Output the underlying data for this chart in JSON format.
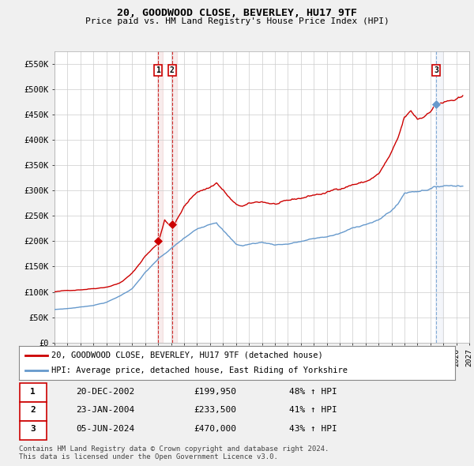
{
  "title": "20, GOODWOOD CLOSE, BEVERLEY, HU17 9TF",
  "subtitle": "Price paid vs. HM Land Registry's House Price Index (HPI)",
  "ylim": [
    0,
    575000
  ],
  "yticks": [
    0,
    50000,
    100000,
    150000,
    200000,
    250000,
    300000,
    350000,
    400000,
    450000,
    500000,
    550000
  ],
  "ytick_labels": [
    "£0",
    "£50K",
    "£100K",
    "£150K",
    "£200K",
    "£250K",
    "£300K",
    "£350K",
    "£400K",
    "£450K",
    "£500K",
    "£550K"
  ],
  "line_color_red": "#cc0000",
  "line_color_blue": "#6699cc",
  "background_color": "#f0f0f0",
  "plot_bg_color": "#ffffff",
  "grid_color": "#cccccc",
  "sale1_x": 2002.97,
  "sale1_y": 199950,
  "sale1_label": "1",
  "sale2_x": 2004.07,
  "sale2_y": 233500,
  "sale2_label": "2",
  "sale3_x": 2024.43,
  "sale3_y": 470000,
  "sale3_label": "3",
  "legend_line1": "20, GOODWOOD CLOSE, BEVERLEY, HU17 9TF (detached house)",
  "legend_line2": "HPI: Average price, detached house, East Riding of Yorkshire",
  "table_rows": [
    [
      "1",
      "20-DEC-2002",
      "£199,950",
      "48% ↑ HPI"
    ],
    [
      "2",
      "23-JAN-2004",
      "£233,500",
      "41% ↑ HPI"
    ],
    [
      "3",
      "05-JUN-2024",
      "£470,000",
      "43% ↑ HPI"
    ]
  ],
  "footer": "Contains HM Land Registry data © Crown copyright and database right 2024.\nThis data is licensed under the Open Government Licence v3.0.",
  "xmin": 1995,
  "xmax": 2026
}
